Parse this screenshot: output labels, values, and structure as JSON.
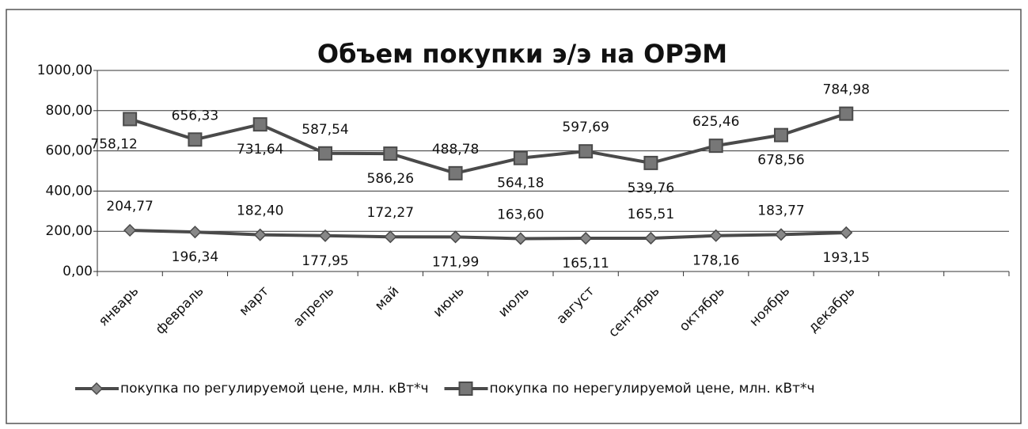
{
  "chart_data": {
    "type": "line",
    "title": "Объем покупки э/э на ОРЭМ",
    "categories": [
      "январь",
      "февраль",
      "март",
      "апрель",
      "май",
      "июнь",
      "июль",
      "август",
      "сентябрь",
      "октябрь",
      "ноябрь",
      "декабрь",
      null,
      null
    ],
    "series": [
      {
        "name": "покупка по регулируемой цене, млн. кВт*ч",
        "color": "#4a4a4a",
        "marker": "diamond",
        "values": [
          204.77,
          196.34,
          182.4,
          177.95,
          172.27,
          171.99,
          163.6,
          165.11,
          165.51,
          178.16,
          183.77,
          193.15,
          null,
          null
        ],
        "value_labels": [
          "204,77",
          "196,34",
          "182,40",
          "177,95",
          "172,27",
          "171,99",
          "163,60",
          "165,11",
          "165,51",
          "178,16",
          "183,77",
          "193,15",
          null,
          null
        ]
      },
      {
        "name": "покупка по нерегулируемой цене, млн. кВт*ч",
        "color": "#4a4a4a",
        "marker": "square",
        "values": [
          758.12,
          656.33,
          731.64,
          587.54,
          586.26,
          488.78,
          564.18,
          597.69,
          539.76,
          625.46,
          678.56,
          784.98,
          null,
          null
        ],
        "value_labels": [
          "758,12",
          "656,33",
          "731,64",
          "587,54",
          "586,26",
          "488,78",
          "564,18",
          "597,69",
          "539,76",
          "625,46",
          "678,56",
          "784,98",
          null,
          null
        ]
      }
    ],
    "ylim": [
      0,
      1000
    ],
    "yticks": [
      {
        "value": 0,
        "label": "0,00"
      },
      {
        "value": 200,
        "label": "200,00"
      },
      {
        "value": 400,
        "label": "400,00"
      },
      {
        "value": 600,
        "label": "600,00"
      },
      {
        "value": 800,
        "label": "800,00"
      },
      {
        "value": 1000,
        "label": "1000,00"
      }
    ],
    "grid": true,
    "legend": "bottom"
  }
}
